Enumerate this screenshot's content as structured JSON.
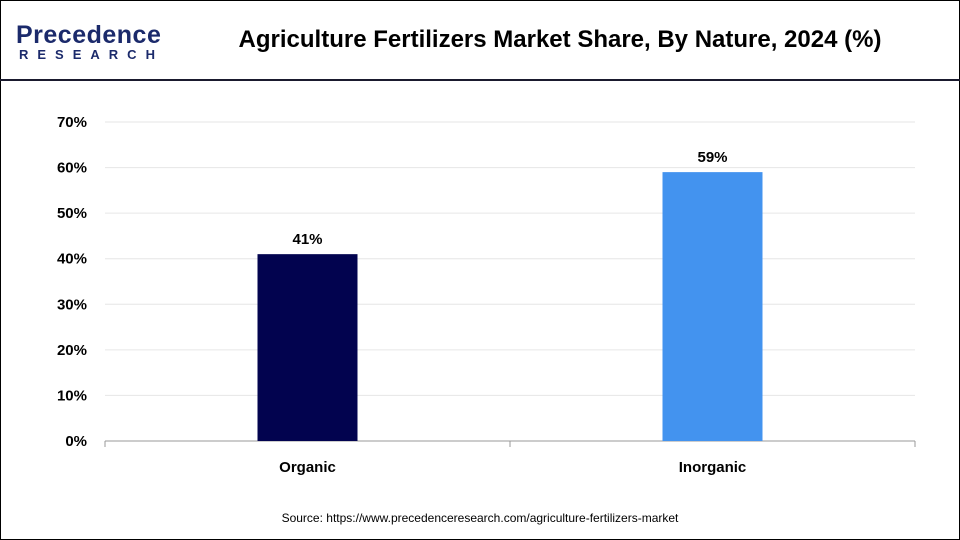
{
  "logo": {
    "line1": "Precedence",
    "line2": "RESEARCH"
  },
  "chart_data": {
    "type": "bar",
    "title": "Agriculture Fertilizers Market Share, By Nature, 2024 (%)",
    "categories": [
      "Organic",
      "Inorganic"
    ],
    "values": [
      41,
      59
    ],
    "data_labels": [
      "41%",
      "59%"
    ],
    "colors": [
      "#02034f",
      "#4393ef"
    ],
    "ylim": [
      0,
      70
    ],
    "yticks": [
      "0%",
      "10%",
      "20%",
      "30%",
      "40%",
      "50%",
      "60%",
      "70%"
    ],
    "grid": true,
    "xlabel": "",
    "ylabel": ""
  },
  "source": "Source: https://www.precedenceresearch.com/agriculture-fertilizers-market"
}
